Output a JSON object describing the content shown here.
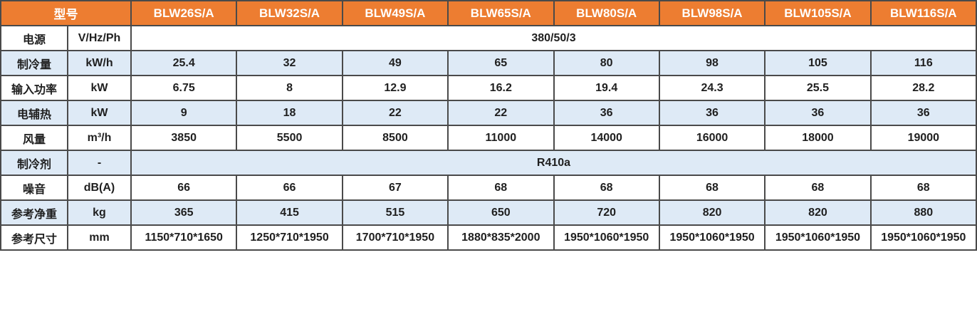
{
  "table": {
    "title_semantic": "product-specification-table",
    "colors": {
      "header_bg": "#ED7D31",
      "header_text": "#FFFFFF",
      "alt_row_bg": "#DEEAF6",
      "row_bg": "#FFFFFF",
      "border": "#4A4A4A",
      "text": "#1F1F1F"
    },
    "header": {
      "model_label": "型号",
      "models": [
        "BLW26S/A",
        "BLW32S/A",
        "BLW49S/A",
        "BLW65S/A",
        "BLW80S/A",
        "BLW98S/A",
        "BLW105S/A",
        "BLW116S/A"
      ]
    },
    "rows": [
      {
        "label": "电源",
        "unit": "V/Hz/Ph",
        "span_value": "380/50/3"
      },
      {
        "label": "制冷量",
        "unit": "kW/h",
        "values": [
          "25.4",
          "32",
          "49",
          "65",
          "80",
          "98",
          "105",
          "116"
        ]
      },
      {
        "label": "输入功率",
        "unit": "kW",
        "values": [
          "6.75",
          "8",
          "12.9",
          "16.2",
          "19.4",
          "24.3",
          "25.5",
          "28.2"
        ]
      },
      {
        "label": "电辅热",
        "unit": "kW",
        "values": [
          "9",
          "18",
          "22",
          "22",
          "36",
          "36",
          "36",
          "36"
        ]
      },
      {
        "label": "风量",
        "unit": "m³/h",
        "values": [
          "3850",
          "5500",
          "8500",
          "11000",
          "14000",
          "16000",
          "18000",
          "19000"
        ]
      },
      {
        "label": "制冷剂",
        "unit": "-",
        "span_value": "R410a"
      },
      {
        "label": "噪音",
        "unit": "dB(A)",
        "values": [
          "66",
          "66",
          "67",
          "68",
          "68",
          "68",
          "68",
          "68"
        ]
      },
      {
        "label": "参考净重",
        "unit": "kg",
        "values": [
          "365",
          "415",
          "515",
          "650",
          "720",
          "820",
          "820",
          "880"
        ]
      },
      {
        "label": "参考尺寸",
        "unit": "mm",
        "values": [
          "1150*710*1650",
          "1250*710*1950",
          "1700*710*1950",
          "1880*835*2000",
          "1950*1060*1950",
          "1950*1060*1950",
          "1950*1060*1950",
          "1950*1060*1950"
        ]
      }
    ],
    "layout": {
      "label_col_width": 94,
      "unit_col_width": 89
    }
  }
}
